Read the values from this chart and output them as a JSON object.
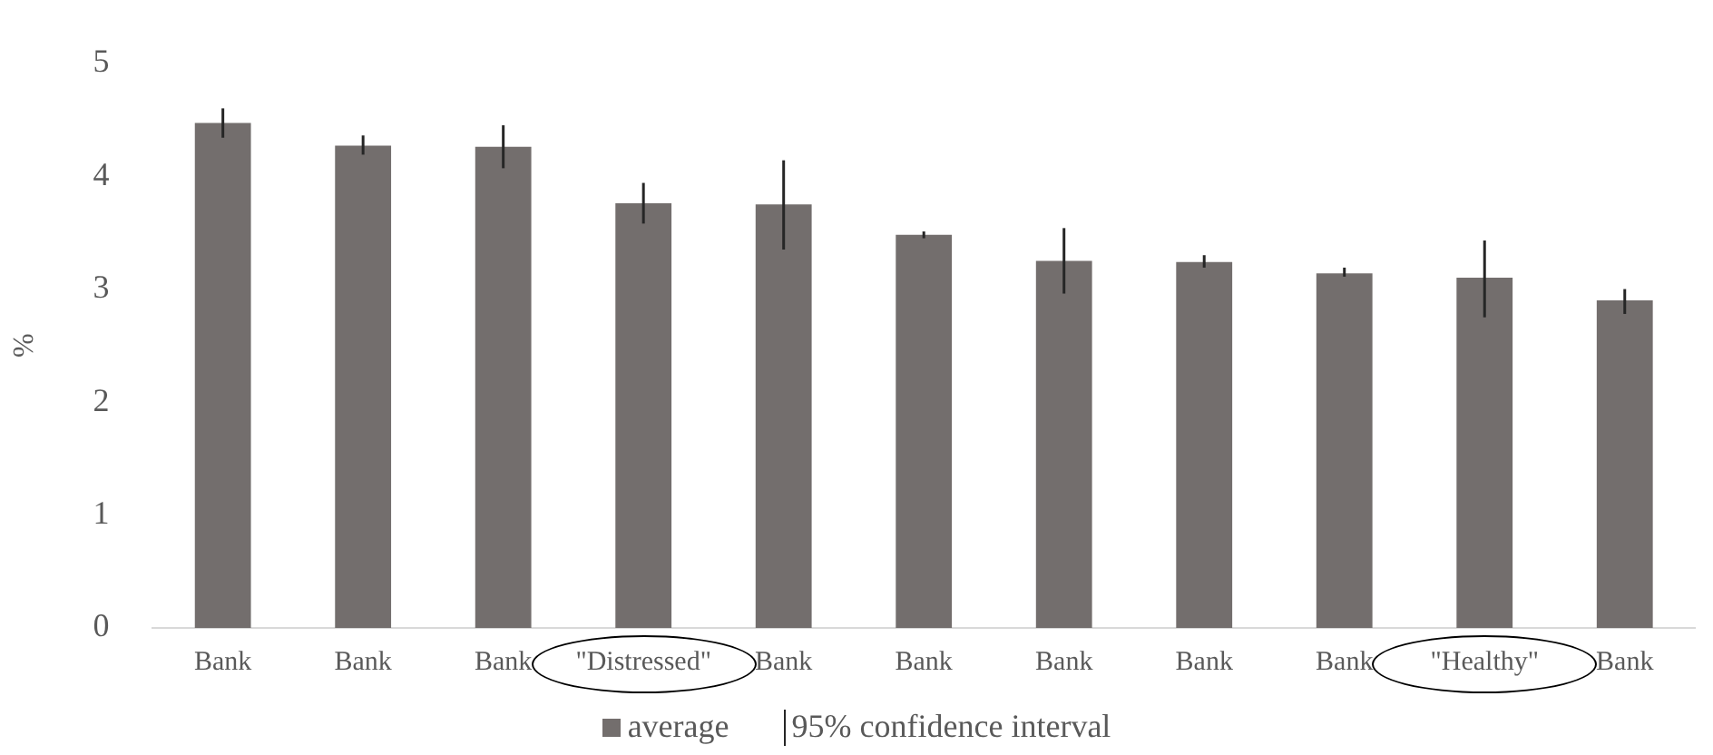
{
  "chart_data": {
    "type": "bar",
    "ylabel": "%",
    "categories": [
      "Bank",
      "Bank",
      "Bank",
      "\"Distressed\"",
      "Bank",
      "Bank",
      "Bank",
      "Bank",
      "Bank",
      "\"Healthy\"",
      "Bank"
    ],
    "series": [
      {
        "name": "average",
        "color": "#736e6d",
        "values": [
          4.47,
          4.27,
          4.26,
          3.76,
          3.75,
          3.48,
          3.25,
          3.24,
          3.14,
          3.1,
          2.9
        ],
        "errors": [
          [
            4.34,
            4.6
          ],
          [
            4.19,
            4.36
          ],
          [
            4.07,
            4.45
          ],
          [
            3.58,
            3.94
          ],
          [
            3.35,
            4.14
          ],
          [
            3.45,
            3.51
          ],
          [
            2.96,
            3.54
          ],
          [
            3.19,
            3.3
          ],
          [
            3.11,
            3.19
          ],
          [
            2.75,
            3.43
          ],
          [
            2.78,
            3.0
          ]
        ]
      }
    ],
    "annotations": [
      "95% confidence interval"
    ],
    "ylim": [
      0,
      5
    ],
    "yticks": [
      0,
      1,
      2,
      3,
      4,
      5
    ],
    "grid": false,
    "legend": "bottom"
  }
}
